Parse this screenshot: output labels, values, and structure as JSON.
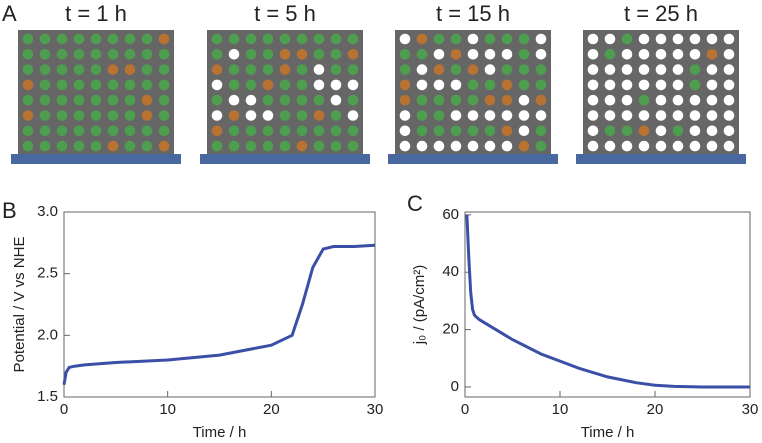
{
  "panel_a": {
    "label": "A",
    "titles": [
      "t = 1 h",
      "t = 5 h",
      "t = 15 h",
      "t = 25 h"
    ]
  },
  "chart_data": [
    {
      "type": "line",
      "panel_label": "B",
      "xlabel": "Time / h",
      "ylabel": "Potential / V vs NHE",
      "color": "#3b4fa8",
      "x": [
        0,
        0.2,
        0.5,
        1,
        2,
        5,
        10,
        15,
        20,
        22,
        23,
        24,
        25,
        26,
        28,
        30
      ],
      "values": [
        1.6,
        1.7,
        1.74,
        1.75,
        1.76,
        1.78,
        1.8,
        1.84,
        1.92,
        2.0,
        2.25,
        2.55,
        2.7,
        2.72,
        2.72,
        2.73
      ],
      "xlim": [
        0,
        30
      ],
      "xticks": [
        0,
        10,
        20,
        30
      ],
      "ylim": [
        1.5,
        3.0
      ],
      "yticks": [
        1.5,
        {
          "value": 2,
          "label": "2.0"
        },
        2.5,
        {
          "value": 3,
          "label": "3.0"
        }
      ]
    },
    {
      "type": "line",
      "panel_label": "C",
      "xlabel": "Time / h",
      "ylabel": "j₀ / (pA/cm²)",
      "color": "#3b4fa8",
      "x": [
        0.2,
        0.4,
        0.6,
        0.8,
        1,
        1.5,
        2,
        3,
        5,
        8,
        10,
        12,
        15,
        18,
        20,
        22,
        25,
        30
      ],
      "values": [
        60,
        45,
        33,
        27,
        25,
        23.5,
        22.5,
        20.5,
        16.5,
        11.5,
        9,
        6.5,
        3.5,
        1.5,
        0.6,
        0.2,
        0,
        0
      ],
      "xlim": [
        0,
        30
      ],
      "xticks": [
        0,
        10,
        20,
        30
      ],
      "ylim": [
        -3.5,
        61
      ],
      "yticks": [
        0,
        20,
        40,
        60
      ]
    }
  ]
}
